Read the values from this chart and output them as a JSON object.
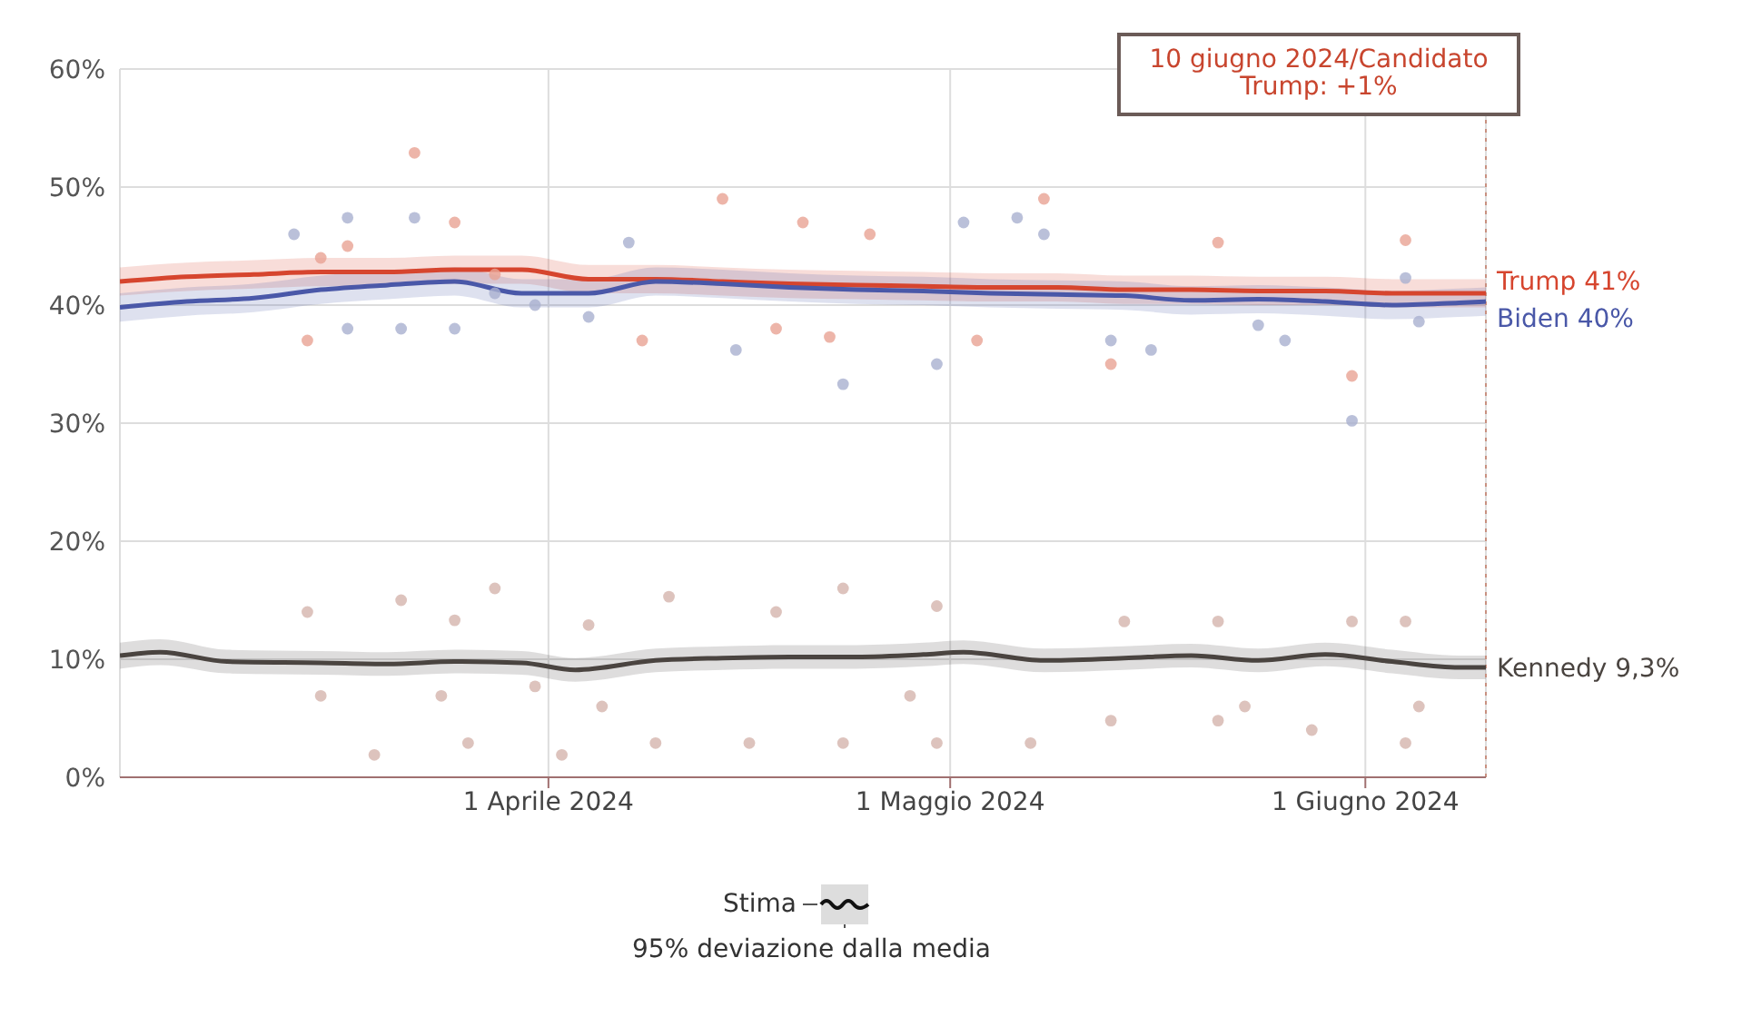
{
  "chart_data": {
    "type": "line",
    "annotations": [
      "10 giugno 2024/Candidato\nTrump: +1%",
      "Stima",
      "95% deviazione dalla media"
    ],
    "xlim": [
      "2024-02-29",
      "2024-06-10"
    ],
    "xticks": [
      {
        "value": "2024-04-01",
        "label": "1 Aprile 2024"
      },
      {
        "value": "2024-05-01",
        "label": "1 Maggio 2024"
      },
      {
        "value": "2024-06-01",
        "label": "1 Giugno 2024"
      }
    ],
    "ylim": [
      0,
      60
    ],
    "yticks": [
      {
        "value": 0,
        "label": "0%"
      },
      {
        "value": 10,
        "label": "10%"
      },
      {
        "value": 20,
        "label": "20%"
      },
      {
        "value": 30,
        "label": "30%"
      },
      {
        "value": 40,
        "label": "40%"
      },
      {
        "value": 50,
        "label": "50%"
      },
      {
        "value": 60,
        "label": "60%"
      }
    ],
    "grid": true,
    "ref_lines": [
      {
        "axis": "x",
        "value": "2024-06-10",
        "label": null,
        "color": "#c89080",
        "line_style": "dotted"
      }
    ],
    "series": [
      {
        "type": "scatter",
        "marker": "circle",
        "color": "#e9a394",
        "x": [
          "2024-03-14",
          "2024-03-15",
          "2024-03-17",
          "2024-03-22",
          "2024-03-25",
          "2024-03-28",
          "2024-04-08",
          "2024-04-14",
          "2024-04-18",
          "2024-04-20",
          "2024-04-22",
          "2024-04-25",
          "2024-05-03",
          "2024-05-08",
          "2024-05-13",
          "2024-05-21",
          "2024-05-31",
          "2024-06-04"
        ],
        "values": [
          37,
          44,
          45,
          52.9,
          47,
          42.6,
          37,
          49,
          38,
          47,
          37.3,
          46,
          37,
          49,
          35,
          45.3,
          34,
          45.5
        ]
      },
      {
        "type": "scatter",
        "marker": "circle",
        "color": "#a9b0cf",
        "x": [
          "2024-03-13",
          "2024-03-17",
          "2024-03-17",
          "2024-03-21",
          "2024-03-22",
          "2024-03-25",
          "2024-03-28",
          "2024-03-31",
          "2024-04-04",
          "2024-04-07",
          "2024-04-15",
          "2024-04-23",
          "2024-04-30",
          "2024-05-02",
          "2024-05-06",
          "2024-05-08",
          "2024-05-13",
          "2024-05-16",
          "2024-05-24",
          "2024-05-26",
          "2024-05-31",
          "2024-06-04",
          "2024-06-05"
        ],
        "values": [
          46,
          38,
          47.4,
          38,
          47.4,
          38,
          41,
          40,
          39,
          45.3,
          36.2,
          33.3,
          35,
          47,
          47.4,
          46,
          37,
          36.2,
          38.3,
          37,
          30.2,
          42.3,
          38.6
        ]
      },
      {
        "type": "scatter",
        "marker": "circle",
        "color": "#d4b4ac",
        "x": [
          "2024-03-14",
          "2024-03-15",
          "2024-03-19",
          "2024-03-21",
          "2024-03-24",
          "2024-03-25",
          "2024-03-26",
          "2024-03-28",
          "2024-03-31",
          "2024-04-02",
          "2024-04-04",
          "2024-04-05",
          "2024-04-09",
          "2024-04-10",
          "2024-04-16",
          "2024-04-18",
          "2024-04-23",
          "2024-04-23",
          "2024-04-28",
          "2024-04-30",
          "2024-04-30",
          "2024-05-07",
          "2024-05-13",
          "2024-05-14",
          "2024-05-21",
          "2024-05-21",
          "2024-05-23",
          "2024-05-28",
          "2024-05-31",
          "2024-06-04",
          "2024-06-04",
          "2024-06-05"
        ],
        "values": [
          14,
          6.9,
          1.9,
          15,
          6.9,
          13.3,
          2.9,
          16,
          7.7,
          1.9,
          12.9,
          6,
          2.9,
          15.3,
          2.9,
          14,
          16,
          2.9,
          6.9,
          14.5,
          2.9,
          2.9,
          4.8,
          13.2,
          13.2,
          4.8,
          6,
          4,
          13.2,
          13.2,
          2.9,
          6
        ]
      },
      {
        "name": "Trump 41%",
        "marker": "none",
        "line_style": "solid",
        "color": "#d6452e",
        "x": [
          "2024-02-29",
          "2024-03-05",
          "2024-03-10",
          "2024-03-15",
          "2024-03-20",
          "2024-03-25",
          "2024-03-30",
          "2024-04-04",
          "2024-04-09",
          "2024-04-14",
          "2024-04-19",
          "2024-04-24",
          "2024-04-29",
          "2024-05-04",
          "2024-05-09",
          "2024-05-14",
          "2024-05-19",
          "2024-05-24",
          "2024-05-29",
          "2024-06-03",
          "2024-06-08",
          "2024-06-10"
        ],
        "values": [
          42,
          42.4,
          42.6,
          42.8,
          42.8,
          43,
          43,
          42.2,
          42.2,
          42,
          41.8,
          41.7,
          41.6,
          41.5,
          41.5,
          41.3,
          41.3,
          41.2,
          41.2,
          41,
          41,
          41
        ],
        "lower": [
          40.8,
          41.2,
          41.4,
          41.6,
          41.6,
          41.8,
          41.8,
          41,
          41,
          40.8,
          40.6,
          40.5,
          40.4,
          40.3,
          40.3,
          40.1,
          40.1,
          40,
          40,
          39.8,
          39.8,
          39.8
        ],
        "upper": [
          43.2,
          43.6,
          43.8,
          44,
          44,
          44.2,
          44.2,
          43.4,
          43.4,
          43.2,
          43,
          42.9,
          42.8,
          42.7,
          42.7,
          42.5,
          42.5,
          42.4,
          42.4,
          42.2,
          42.2,
          42.2
        ]
      },
      {
        "name": "Biden 40%",
        "marker": "none",
        "line_style": "solid",
        "color": "#4a58a8",
        "x": [
          "2024-02-29",
          "2024-03-05",
          "2024-03-10",
          "2024-03-15",
          "2024-03-20",
          "2024-03-25",
          "2024-03-30",
          "2024-04-04",
          "2024-04-09",
          "2024-04-14",
          "2024-04-19",
          "2024-04-24",
          "2024-04-29",
          "2024-05-04",
          "2024-05-09",
          "2024-05-14",
          "2024-05-19",
          "2024-05-24",
          "2024-05-29",
          "2024-06-03",
          "2024-06-08",
          "2024-06-10"
        ],
        "values": [
          39.8,
          40.3,
          40.6,
          41.3,
          41.7,
          42,
          41,
          41,
          42,
          41.8,
          41.5,
          41.3,
          41.2,
          41,
          40.9,
          40.8,
          40.4,
          40.5,
          40.3,
          40,
          40.2,
          40.3
        ],
        "lower": [
          38.6,
          39.1,
          39.4,
          40.1,
          40.5,
          40.8,
          39.8,
          39.8,
          40.8,
          40.6,
          40.3,
          40.1,
          40,
          39.8,
          39.7,
          39.6,
          39.2,
          39.3,
          39.1,
          38.8,
          39,
          39.1
        ],
        "upper": [
          41,
          41.5,
          41.8,
          42.5,
          42.9,
          43.2,
          42.2,
          42.2,
          43.2,
          43,
          42.7,
          42.5,
          42.4,
          42.2,
          42.1,
          42,
          41.6,
          41.7,
          41.5,
          41.2,
          41.4,
          41.5
        ]
      },
      {
        "name": "Kennedy 9,3%",
        "marker": "none",
        "line_style": "solid",
        "color": "#4a4440",
        "x": [
          "2024-02-29",
          "2024-03-03",
          "2024-03-08",
          "2024-03-15",
          "2024-03-20",
          "2024-03-25",
          "2024-03-30",
          "2024-04-03",
          "2024-04-09",
          "2024-04-14",
          "2024-04-19",
          "2024-04-24",
          "2024-04-29",
          "2024-05-02",
          "2024-05-08",
          "2024-05-14",
          "2024-05-19",
          "2024-05-24",
          "2024-05-29",
          "2024-06-03",
          "2024-06-08",
          "2024-06-10"
        ],
        "values": [
          10.3,
          10.6,
          9.8,
          9.7,
          9.6,
          9.8,
          9.7,
          9.1,
          9.9,
          10.1,
          10.2,
          10.2,
          10.4,
          10.6,
          9.9,
          10.1,
          10.3,
          9.9,
          10.4,
          9.8,
          9.3,
          9.3
        ],
        "lower": [
          9.2,
          9.5,
          8.8,
          8.7,
          8.6,
          8.8,
          8.7,
          8.1,
          8.9,
          9.1,
          9.2,
          9.2,
          9.4,
          9.6,
          8.9,
          9.1,
          9.3,
          8.9,
          9.4,
          8.8,
          8.3,
          8.3
        ],
        "upper": [
          11.4,
          11.7,
          10.8,
          10.7,
          10.6,
          10.8,
          10.7,
          10.1,
          10.9,
          11.1,
          11.2,
          11.2,
          11.4,
          11.6,
          10.9,
          11.1,
          11.3,
          10.9,
          11.4,
          10.8,
          10.3,
          10.3
        ]
      }
    ]
  }
}
